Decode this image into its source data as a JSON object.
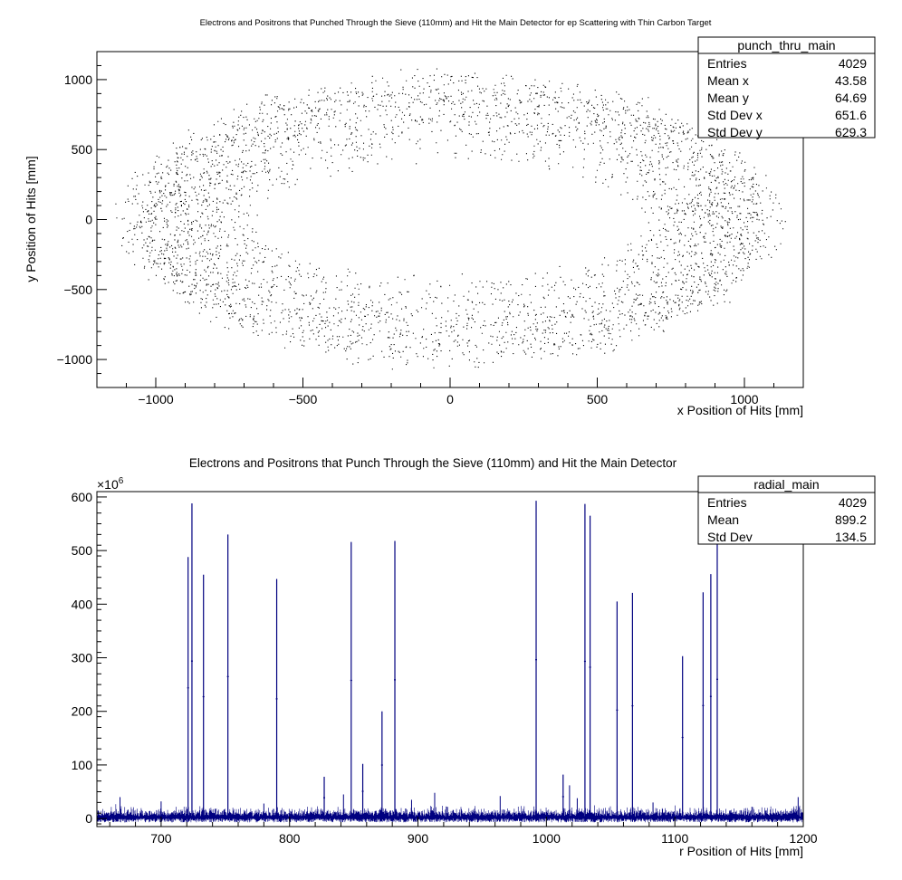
{
  "chart_data": [
    {
      "type": "scatter",
      "title": "Electrons and Positrons that Punched Through the Sieve (110mm) and Hit the Main Detector for ep Scattering with Thin Carbon Target",
      "xlabel": "x Position of Hits [mm]",
      "ylabel": "y Position of Hits [mm]",
      "xlim": [
        -1200,
        1200
      ],
      "ylim": [
        -1200,
        1200
      ],
      "xticks": [
        -1000,
        -500,
        0,
        500,
        1000
      ],
      "yticks": [
        -1000,
        -500,
        0,
        500,
        1000
      ],
      "xtick_labels": [
        "−1000",
        "−500",
        "0",
        "500",
        "1000"
      ],
      "ytick_labels": [
        "−1000",
        "−500",
        "0",
        "500",
        "1000"
      ],
      "distribution": {
        "shape": "elliptical annulus",
        "inner_radius_x": 640,
        "inner_radius_y": 370,
        "outer_radius_x": 1150,
        "outer_radius_y": 1100,
        "count": 4029,
        "color": "#000000"
      },
      "stats_box": {
        "title": "punch_thru_main",
        "rows": [
          {
            "label": "Entries",
            "value": "4029"
          },
          {
            "label": "Mean x",
            "value": "43.58"
          },
          {
            "label": "Mean y",
            "value": "64.69"
          },
          {
            "label": "Std Dev x",
            "value": "651.6"
          },
          {
            "label": "Std Dev y",
            "value": "629.3"
          }
        ]
      },
      "grid": false
    },
    {
      "type": "bar",
      "title": "Electrons and Positrons that Punch Through the Sieve (110mm) and Hit the Main Detector",
      "xlabel": "r Position of Hits [mm]",
      "ylabel": "",
      "y_multiplier": "×10",
      "y_multiplier_exp": "6",
      "xlim": [
        650,
        1200
      ],
      "ylim": [
        -15,
        610
      ],
      "xticks": [
        700,
        800,
        900,
        1000,
        1100,
        1200
      ],
      "yticks": [
        0,
        100,
        200,
        300,
        400,
        500,
        600
      ],
      "color": "#000080",
      "noise_level": 12,
      "spikes": [
        {
          "x": 721,
          "value": 488
        },
        {
          "x": 724,
          "value": 588
        },
        {
          "x": 733,
          "value": 455
        },
        {
          "x": 752,
          "value": 530
        },
        {
          "x": 790,
          "value": 447
        },
        {
          "x": 827,
          "value": 78
        },
        {
          "x": 848,
          "value": 516
        },
        {
          "x": 857,
          "value": 102
        },
        {
          "x": 872,
          "value": 200
        },
        {
          "x": 882,
          "value": 518
        },
        {
          "x": 992,
          "value": 593
        },
        {
          "x": 1013,
          "value": 82
        },
        {
          "x": 1030,
          "value": 587
        },
        {
          "x": 1034,
          "value": 565
        },
        {
          "x": 1055,
          "value": 405
        },
        {
          "x": 1067,
          "value": 421
        },
        {
          "x": 1106,
          "value": 303
        },
        {
          "x": 1122,
          "value": 422
        },
        {
          "x": 1128,
          "value": 456
        },
        {
          "x": 1133,
          "value": 520
        }
      ],
      "stats_box": {
        "title": "radial_main",
        "rows": [
          {
            "label": "Entries",
            "value": "4029"
          },
          {
            "label": "Mean",
            "value": "899.2"
          },
          {
            "label": "Std Dev",
            "value": "134.5"
          }
        ]
      },
      "grid": false
    }
  ]
}
